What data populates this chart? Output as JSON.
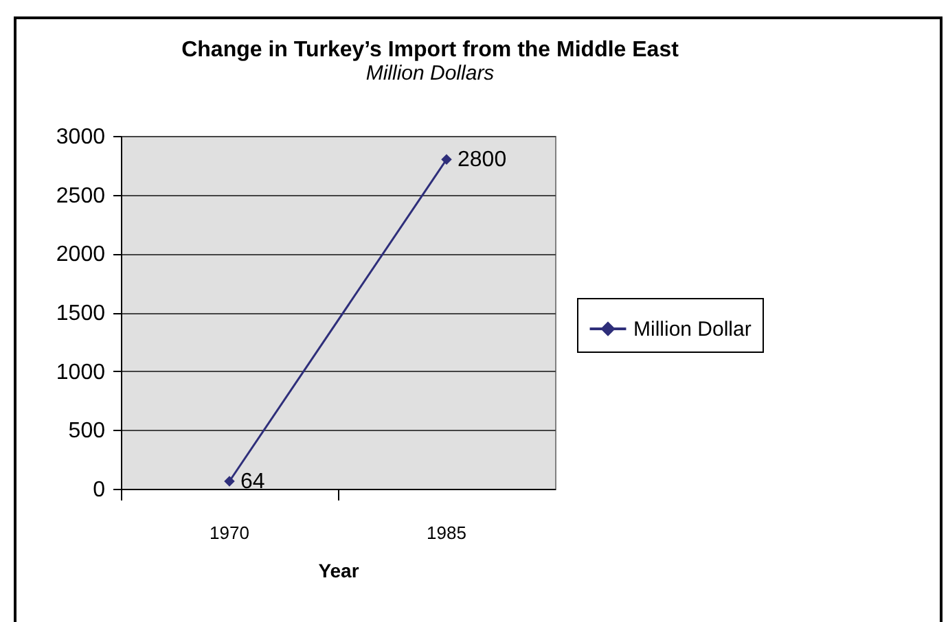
{
  "chart_data": {
    "type": "line",
    "title": "Change in Turkey’s Import from the Middle East",
    "subtitle": "Million Dollars",
    "xlabel": "Year",
    "categories": [
      "1970",
      "1985"
    ],
    "series": [
      {
        "name": "Million Dollar",
        "color": "#2e2e7a",
        "values": [
          64,
          2800
        ]
      }
    ],
    "ylim": [
      0,
      3000
    ],
    "yticks": [
      0,
      500,
      1000,
      1500,
      2000,
      2500,
      3000
    ],
    "grid": "y",
    "legend": "right",
    "marker": "diamond",
    "data_labels": true
  }
}
